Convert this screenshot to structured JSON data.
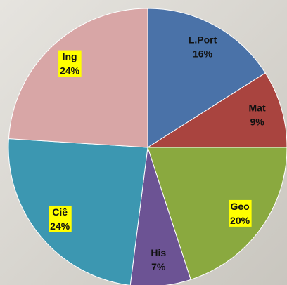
{
  "chart_data": {
    "type": "pie",
    "categories": [
      "L.Port",
      "Mat",
      "Geo",
      "His",
      "Ciê",
      "Ing"
    ],
    "values": [
      16,
      9,
      20,
      7,
      24,
      24
    ],
    "value_labels": [
      "16%",
      "9%",
      "20%",
      "7%",
      "24%",
      "24%"
    ],
    "colors": [
      "#4a72a8",
      "#a9443f",
      "#8aa93f",
      "#6c5394",
      "#3c97b1",
      "#d8a6a6"
    ],
    "label_highlight": [
      false,
      false,
      true,
      false,
      true,
      true
    ],
    "highlight_color": "#ffff00"
  }
}
